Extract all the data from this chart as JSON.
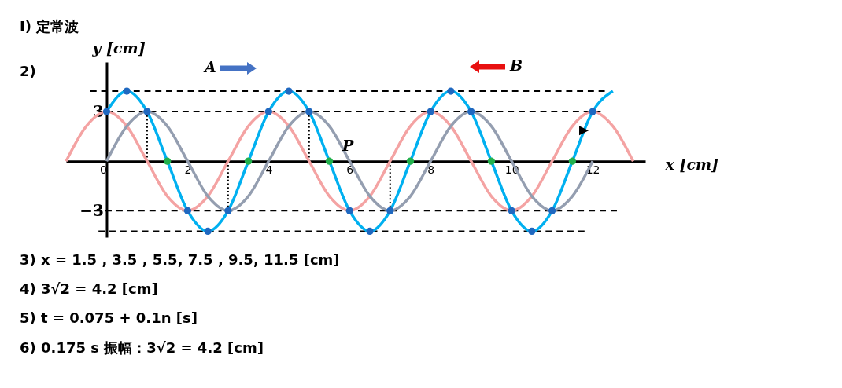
{
  "chart_data": {
    "type": "line",
    "title": "I) 定常波",
    "xlabel": "x [cm]",
    "ylabel": "y [cm]",
    "xlim": [
      -1,
      13.3
    ],
    "ylim": [
      -4.6,
      6
    ],
    "xticks": [
      0,
      2,
      4,
      6,
      8,
      10,
      12
    ],
    "yticks": [
      {
        "value": -3,
        "label": "−3"
      },
      3
    ],
    "series": [
      {
        "type": "line",
        "line_style": "dashed",
        "color": "#000000",
        "x": [
          -0.4,
          12.3
        ],
        "values": [
          4.24,
          4.24
        ]
      },
      {
        "type": "line",
        "line_style": "dashed",
        "color": "#000000",
        "x": [
          0,
          12.2
        ],
        "values": [
          3,
          3
        ]
      },
      {
        "type": "line",
        "line_style": "dashed",
        "color": "#000000",
        "x": [
          -0.3,
          12.6
        ],
        "values": [
          -3,
          -3
        ]
      },
      {
        "type": "line",
        "line_style": "dashed",
        "color": "#000000",
        "x": [
          -0.2,
          11.8
        ],
        "values": [
          -4.24,
          -4.24
        ]
      },
      {
        "type": "line",
        "line_style": "dotted",
        "color": "#000000",
        "x": [
          1,
          1
        ],
        "values": [
          0,
          3
        ]
      },
      {
        "type": "line",
        "line_style": "dotted",
        "color": "#000000",
        "x": [
          3,
          3
        ],
        "values": [
          0,
          -3
        ]
      },
      {
        "type": "line",
        "line_style": "dotted",
        "color": "#000000",
        "x": [
          5,
          5
        ],
        "values": [
          0,
          3
        ]
      },
      {
        "type": "line",
        "line_style": "dotted",
        "color": "#000000",
        "x": [
          7,
          7
        ],
        "values": [
          0,
          -3
        ]
      },
      {
        "type": "line",
        "line_style": "solid",
        "color": "#f4a3a3",
        "x": [
          -1,
          -0.5,
          0,
          0.5,
          1,
          1.5,
          2,
          2.5,
          3,
          3.5,
          4,
          4.5,
          5,
          5.5,
          6,
          6.5,
          7,
          7.5,
          8,
          8.5,
          9,
          9.5,
          10,
          10.5,
          11,
          11.5,
          12,
          12.5,
          13
        ],
        "values": [
          0,
          2.12,
          3,
          2.12,
          0,
          -2.12,
          -3,
          -2.12,
          0,
          2.12,
          3,
          2.12,
          0,
          -2.12,
          -3,
          -2.12,
          0,
          2.12,
          3,
          2.12,
          0,
          -2.12,
          -3,
          -2.12,
          0,
          2.12,
          3,
          2.12,
          0
        ]
      },
      {
        "type": "line",
        "line_style": "solid",
        "color": "#949eb0",
        "x": [
          0,
          0.5,
          1,
          1.5,
          2,
          2.5,
          3,
          3.5,
          4,
          4.5,
          5,
          5.5,
          6,
          6.5,
          7,
          7.5,
          8,
          8.5,
          9,
          9.5,
          10,
          10.5,
          11,
          11.5,
          12
        ],
        "values": [
          0,
          2.12,
          3,
          2.12,
          0,
          -2.12,
          -3,
          -2.12,
          0,
          2.12,
          3,
          2.12,
          0,
          -2.12,
          -3,
          -2.12,
          0,
          2.12,
          3,
          2.12,
          0,
          -2.12,
          -3,
          -2.12,
          0
        ]
      },
      {
        "type": "line",
        "line_style": "solid",
        "color": "#00b0f0",
        "x": [
          0,
          0.5,
          1,
          1.5,
          2,
          2.5,
          3,
          3.5,
          4,
          4.5,
          5,
          5.5,
          6,
          6.5,
          7,
          7.5,
          8,
          8.5,
          9,
          9.5,
          10,
          10.5,
          11,
          11.5,
          12,
          12.5
        ],
        "values": [
          3,
          4.24,
          3,
          0,
          -3,
          -4.24,
          -3,
          0,
          3,
          4.24,
          3,
          0,
          -3,
          -4.24,
          -3,
          0,
          3,
          4.24,
          3,
          0,
          -3,
          -4.24,
          -3,
          0,
          3,
          4.24
        ]
      },
      {
        "type": "scatter",
        "marker": "circle",
        "color": "#1f68c0",
        "x": [
          0,
          0.5,
          1,
          2,
          2.5,
          3,
          4,
          4.5,
          5,
          6,
          6.5,
          7,
          8,
          8.5,
          9,
          10,
          10.5,
          11,
          12
        ],
        "values": [
          3,
          4.24,
          3,
          -3,
          -4.24,
          -3,
          3,
          4.24,
          3,
          -3,
          -4.24,
          -3,
          3,
          4.24,
          3,
          -3,
          -4.24,
          -3,
          3
        ]
      },
      {
        "type": "scatter",
        "marker": "circle",
        "color": "#22b14c",
        "x": [
          1.5,
          3.5,
          5.5,
          7.5,
          9.5,
          11.5
        ],
        "values": [
          0,
          0,
          0,
          0,
          0,
          0
        ]
      }
    ],
    "annotations": [
      "2)",
      "A",
      "B",
      "P",
      "3) x = 1.5 , 3.5 , 5.5, 7.5 , 9.5, 11.5 [cm]",
      "4) 3√2 = 4.2 [cm]",
      "5) t = 0.075 + 0.1n [s]",
      "6) 0.175 s 振幅：3√2 = 4.2 [cm]"
    ]
  }
}
